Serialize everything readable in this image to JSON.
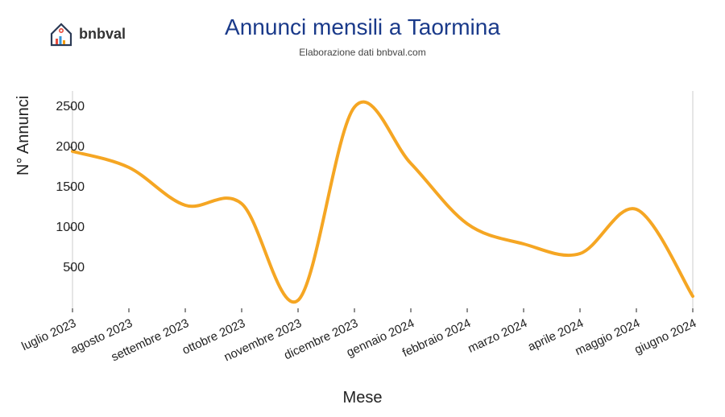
{
  "brand": {
    "name": "bnbval"
  },
  "chart": {
    "type": "line",
    "title": "Annunci mensili a Taormina",
    "title_color": "#1a3a8a",
    "title_fontsize": 28,
    "subtitle": "Elaborazione dati bnbval.com",
    "subtitle_fontsize": 12,
    "ylabel": "N° Annunci",
    "xlabel": "Mese",
    "label_fontsize": 20,
    "background_color": "#ffffff",
    "line_color": "#f5a623",
    "line_width": 4,
    "border_color": "#cccccc",
    "ylim": [
      0,
      2700
    ],
    "yticks": [
      500,
      1000,
      1500,
      2000,
      2500
    ],
    "categories": [
      "luglio 2023",
      "agosto 2023",
      "settembre 2023",
      "ottobre 2023",
      "novembre 2023",
      "dicembre 2023",
      "gennaio 2024",
      "febbraio 2024",
      "marzo 2024",
      "aprile 2024",
      "maggio 2024",
      "giugno 2024"
    ],
    "values": [
      1950,
      1750,
      1280,
      1300,
      100,
      2500,
      1800,
      1050,
      800,
      680,
      1230,
      150
    ],
    "smooth": true,
    "tick_fontsize": 16,
    "xtick_rotation": -25
  },
  "logo_colors": {
    "roof": "#2b3a55",
    "bars": [
      "#e74c3c",
      "#3498db",
      "#f39c12"
    ],
    "dot": "#e74c3c"
  }
}
